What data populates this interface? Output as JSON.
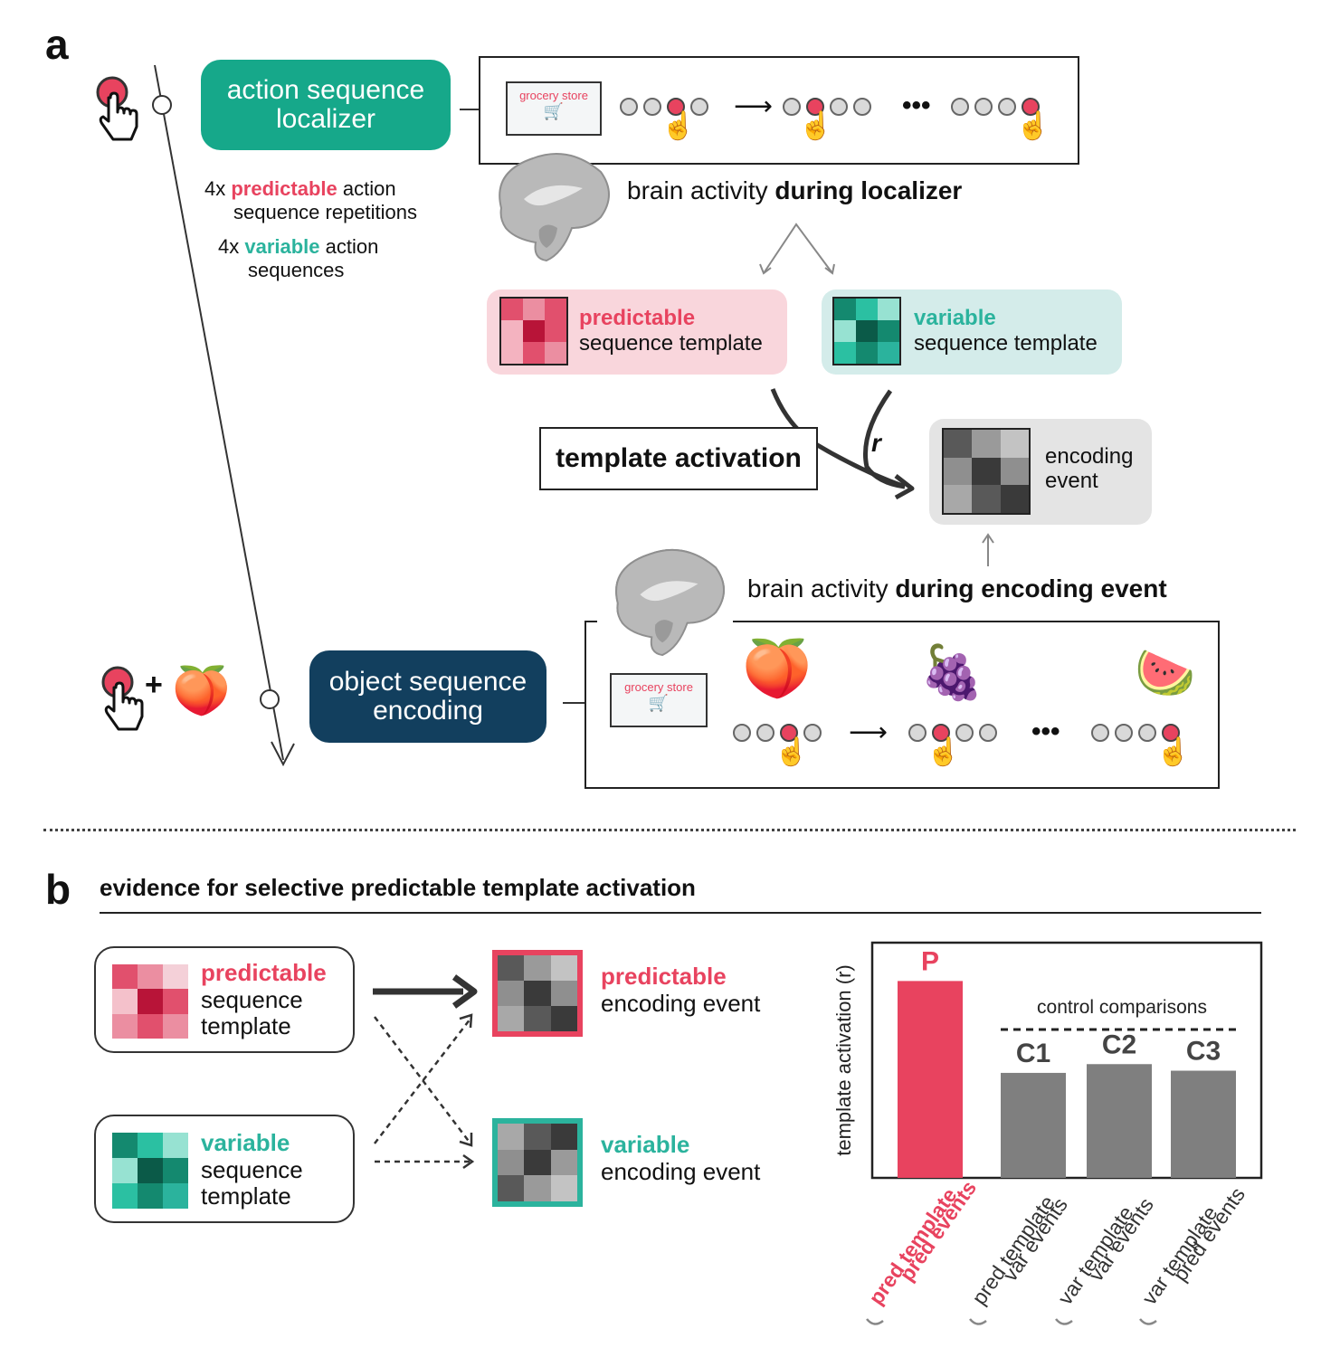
{
  "panel_a": {
    "letter": "a",
    "localizer_pill": "action sequence localizer",
    "localizer_pill_line1": "action sequence",
    "localizer_pill_line2": "localizer",
    "rep_line1_prefix": "4x ",
    "rep_line1_key": "predictable",
    "rep_line1_suffix": " action",
    "rep_line2": "sequence repetitions",
    "var_line1_prefix": "4x ",
    "var_line1_key": "variable",
    "var_line1_suffix": " action",
    "var_line2": "sequences",
    "store_label": "grocery store",
    "ellipsis": "•••",
    "brain_localizer_prefix": "brain activity ",
    "brain_localizer_bold": "during localizer",
    "pred_template_title": "predictable",
    "pred_template_sub": "sequence template",
    "var_template_title": "variable",
    "var_template_sub": "sequence template",
    "template_activation": "template activation",
    "r_label": "r",
    "encoding_event_line1": "encoding",
    "encoding_event_line2": "event",
    "brain_encoding_prefix": "brain activity ",
    "brain_encoding_bold": "during encoding event",
    "encoding_pill_line1": "object sequence",
    "encoding_pill_line2": "encoding",
    "plus": "+"
  },
  "panel_b": {
    "letter": "b",
    "title": "evidence for selective predictable template activation",
    "pred_template": [
      "predictable",
      "sequence",
      "template"
    ],
    "var_template": [
      "variable",
      "sequence",
      "template"
    ],
    "pred_event": [
      "predictable",
      "encoding event"
    ],
    "var_event": [
      "variable",
      "encoding event"
    ]
  },
  "colors": {
    "pink": "#e8435f",
    "teal": "#2bb39d",
    "green_pill": "#16a88a",
    "navy_pill": "#123f5e",
    "bar_gray": "#7f7f7f"
  },
  "chart_data": {
    "type": "bar",
    "ylabel": "template activation (r)",
    "bar_labels": [
      "P",
      "C1",
      "C2",
      "C3"
    ],
    "group_label": "control comparisons",
    "values": [
      0.9,
      0.48,
      0.52,
      0.49
    ],
    "ylim": [
      0,
      1
    ],
    "colors": [
      "#e8435f",
      "#7f7f7f",
      "#7f7f7f",
      "#7f7f7f"
    ],
    "tick_labels": [
      [
        "pred template",
        "pred events"
      ],
      [
        "pred template",
        "var events"
      ],
      [
        "var template",
        "var events"
      ],
      [
        "var template",
        "pred events"
      ]
    ]
  }
}
